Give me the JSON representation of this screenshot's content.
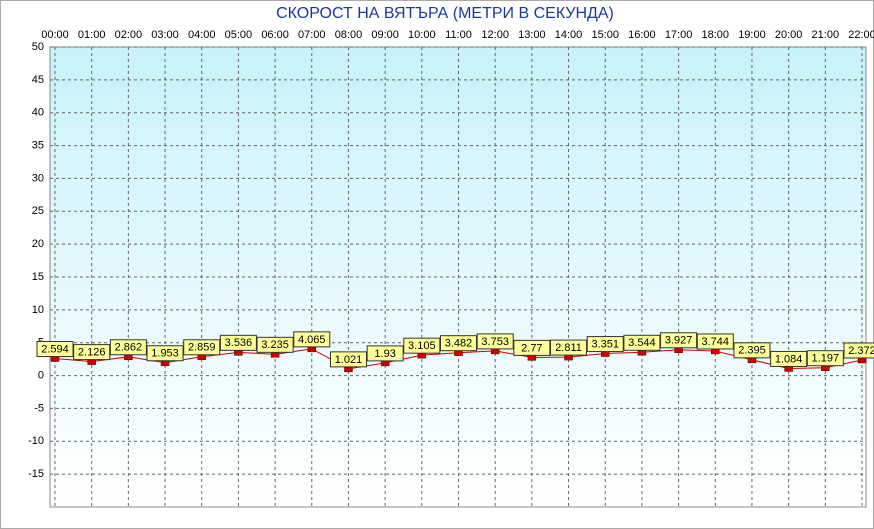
{
  "chart_data": {
    "type": "line",
    "title": "СКОРОСТ НА ВЯТЪРА (МЕТРИ В СЕКУНДА)",
    "categories": [
      "00:00",
      "01:00",
      "02:00",
      "03:00",
      "04:00",
      "05:00",
      "06:00",
      "07:00",
      "08:00",
      "09:00",
      "10:00",
      "11:00",
      "12:00",
      "13:00",
      "14:00",
      "15:00",
      "16:00",
      "17:00",
      "18:00",
      "19:00",
      "20:00",
      "21:00",
      "22:00"
    ],
    "values": [
      2.594,
      2.126,
      2.862,
      1.953,
      2.859,
      3.536,
      3.235,
      4.065,
      1.021,
      1.93,
      3.105,
      3.482,
      3.753,
      2.77,
      2.811,
      3.351,
      3.544,
      3.927,
      3.744,
      2.395,
      1.084,
      1.197,
      2.372
    ],
    "color": "#cc0000",
    "ylim": [
      -20,
      50
    ],
    "yticks": [
      50,
      45,
      40,
      35,
      30,
      25,
      20,
      15,
      10,
      5,
      0,
      -5,
      -10,
      -15
    ],
    "grid": true
  }
}
